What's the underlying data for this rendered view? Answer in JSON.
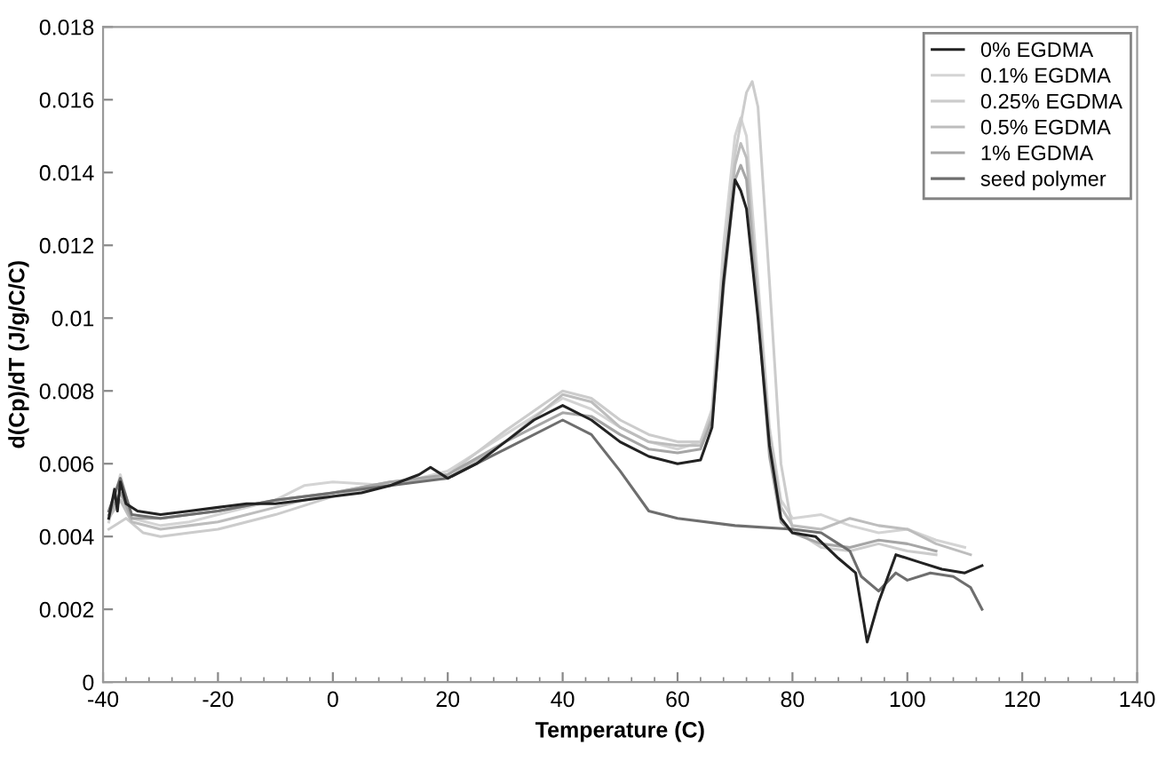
{
  "chart_data": {
    "type": "line",
    "xlabel": "Temperature (C)",
    "ylabel": "d(Cp)/dT (J/g/C/C)",
    "xlim": [
      -40,
      140
    ],
    "xticks": [
      -40,
      -20,
      0,
      20,
      40,
      60,
      80,
      100,
      120,
      140
    ],
    "ylim": [
      0,
      0.018
    ],
    "yticks": [
      0,
      0.002,
      0.004,
      0.006,
      0.008,
      {
        "value": 0.01,
        "label": "0.01"
      },
      0.012,
      0.014,
      0.016,
      0.018
    ],
    "grid": false,
    "legend": "top right",
    "marker": "none",
    "line_style": "solid",
    "series": [
      {
        "name": "0% EGDMA",
        "color": "#222222",
        "x": [
          -39,
          -38,
          -37.5,
          -37,
          -36,
          -34,
          -30,
          -25,
          -20,
          -15,
          -10,
          -5,
          0,
          5,
          10,
          15,
          17,
          20,
          25,
          30,
          35,
          40,
          45,
          50,
          55,
          60,
          64,
          66,
          68,
          70,
          71,
          72,
          74,
          76,
          78,
          80,
          84,
          88,
          91,
          93,
          95,
          98,
          102,
          106,
          110,
          113
        ],
        "values": [
          0.0045,
          0.0053,
          0.0047,
          0.0055,
          0.0049,
          0.0047,
          0.0046,
          0.0047,
          0.0048,
          0.0049,
          0.0049,
          0.005,
          0.0051,
          0.0052,
          0.0054,
          0.0057,
          0.0059,
          0.0056,
          0.006,
          0.0066,
          0.0072,
          0.0076,
          0.0072,
          0.0066,
          0.0062,
          0.006,
          0.0061,
          0.007,
          0.011,
          0.0138,
          0.0135,
          0.013,
          0.01,
          0.0065,
          0.0045,
          0.0041,
          0.004,
          0.0034,
          0.003,
          0.0011,
          0.0022,
          0.0035,
          0.0033,
          0.0031,
          0.003,
          0.0032
        ]
      },
      {
        "name": "0.1% EGDMA",
        "color": "#d4d4d4",
        "x": [
          -39,
          -37,
          -35,
          -30,
          -25,
          -20,
          -10,
          -5,
          0,
          10,
          20,
          30,
          40,
          45,
          50,
          55,
          60,
          64,
          66,
          68,
          70,
          71,
          72,
          74,
          76,
          78,
          80,
          85,
          90,
          95,
          100,
          105,
          110
        ],
        "values": [
          0.0044,
          0.0057,
          0.0045,
          0.0043,
          0.0044,
          0.0046,
          0.005,
          0.0054,
          0.0055,
          0.0054,
          0.0058,
          0.0068,
          0.0078,
          0.0075,
          0.007,
          0.0066,
          0.0064,
          0.0066,
          0.0075,
          0.012,
          0.015,
          0.0155,
          0.015,
          0.011,
          0.007,
          0.005,
          0.0045,
          0.0046,
          0.0043,
          0.0041,
          0.0042,
          0.0039,
          0.0037
        ]
      },
      {
        "name": "0.25% EGDMA",
        "color": "#cccccc",
        "x": [
          -39,
          -36,
          -33,
          -30,
          -25,
          -20,
          -10,
          0,
          10,
          20,
          30,
          40,
          45,
          50,
          55,
          60,
          64,
          66,
          68,
          70,
          72,
          73,
          74,
          76,
          78,
          80,
          85,
          90,
          95,
          100,
          105
        ],
        "values": [
          0.0042,
          0.0045,
          0.0041,
          0.004,
          0.0041,
          0.0042,
          0.0046,
          0.0051,
          0.0054,
          0.0057,
          0.0069,
          0.008,
          0.0078,
          0.0072,
          0.0068,
          0.0066,
          0.0066,
          0.0074,
          0.0115,
          0.0145,
          0.0162,
          0.0165,
          0.0158,
          0.011,
          0.006,
          0.0042,
          0.0037,
          0.0036,
          0.0038,
          0.0036,
          0.0035
        ]
      },
      {
        "name": "0.5% EGDMA",
        "color": "#bdbdbd",
        "x": [
          -39,
          -37,
          -35,
          -30,
          -25,
          -20,
          -10,
          0,
          10,
          20,
          30,
          40,
          45,
          50,
          55,
          60,
          64,
          66,
          68,
          70,
          71,
          72,
          74,
          76,
          78,
          80,
          85,
          90,
          95,
          100,
          105,
          111
        ],
        "values": [
          0.0045,
          0.005,
          0.0044,
          0.0042,
          0.0043,
          0.0044,
          0.0048,
          0.0052,
          0.0055,
          0.0056,
          0.0066,
          0.0079,
          0.0077,
          0.007,
          0.0066,
          0.0065,
          0.0065,
          0.0073,
          0.0112,
          0.0142,
          0.0148,
          0.0144,
          0.0105,
          0.0068,
          0.0048,
          0.0043,
          0.0042,
          0.0045,
          0.0043,
          0.0042,
          0.0038,
          0.0035
        ]
      },
      {
        "name": "1% EGDMA",
        "color": "#a6a6a6",
        "x": [
          -39,
          -37,
          -35,
          -30,
          -25,
          -20,
          -10,
          0,
          10,
          20,
          30,
          40,
          45,
          50,
          55,
          60,
          64,
          66,
          68,
          70,
          71,
          72,
          74,
          76,
          78,
          80,
          85,
          90,
          95,
          100,
          105
        ],
        "values": [
          0.0046,
          0.0052,
          0.0045,
          0.0045,
          0.0046,
          0.0047,
          0.005,
          0.0052,
          0.0055,
          0.0057,
          0.0066,
          0.0074,
          0.0073,
          0.0068,
          0.0064,
          0.0063,
          0.0064,
          0.0072,
          0.0108,
          0.0138,
          0.0142,
          0.0138,
          0.0102,
          0.0062,
          0.0044,
          0.0041,
          0.0038,
          0.0037,
          0.0039,
          0.0038,
          0.0036
        ]
      },
      {
        "name": "seed polymer",
        "color": "#6e6e6e",
        "x": [
          -39,
          -37,
          -35,
          -30,
          -25,
          -20,
          -10,
          0,
          10,
          20,
          30,
          40,
          45,
          50,
          55,
          60,
          70,
          80,
          85,
          88,
          90,
          92,
          95,
          98,
          100,
          104,
          108,
          111,
          113
        ],
        "values": [
          0.0047,
          0.0056,
          0.0046,
          0.0045,
          0.0046,
          0.0047,
          0.005,
          0.0052,
          0.0054,
          0.0056,
          0.0064,
          0.0072,
          0.0068,
          0.0058,
          0.0047,
          0.0045,
          0.0043,
          0.0042,
          0.0041,
          0.0038,
          0.0036,
          0.0029,
          0.0025,
          0.003,
          0.0028,
          0.003,
          0.0029,
          0.0026,
          0.002
        ]
      }
    ]
  }
}
